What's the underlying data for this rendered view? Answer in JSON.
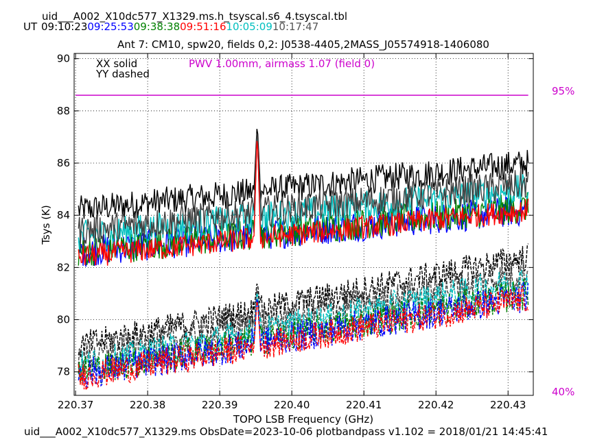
{
  "header": {
    "filename": "uid___A002_X10dc577_X1329.ms.h_tsyscal.s6_4.tsyscal.tbl",
    "ut_label": "UT",
    "times": [
      {
        "text": "09:10:23",
        "color": "#000000"
      },
      {
        "text": "09:25:53",
        "color": "#0000ff"
      },
      {
        "text": "09:38:38",
        "color": "#008000"
      },
      {
        "text": "09:51:16",
        "color": "#ff0000"
      },
      {
        "text": "10:05:09",
        "color": "#00bfbf"
      },
      {
        "text": "10:17:47",
        "color": "#555555"
      }
    ]
  },
  "footer": "uid___A002_X10dc577_X1329.ms  ObsDate=2023-10-06   plotbandpass v1.102 = 2018/01/21 14:45:41",
  "chart_data": {
    "type": "line",
    "title": "Ant 7: CM10,  spw20,  fields 0,2: J0538-4405,2MASS_J05574918-1406080",
    "xlabel": "TOPO LSB Frequency (GHz)",
    "ylabel": "Tsys (K)",
    "xlim": [
      220.3698,
      220.4335
    ],
    "ylim": [
      77.1,
      90.2
    ],
    "xticks": [
      "220.37",
      "220.38",
      "220.39",
      "220.40",
      "220.41",
      "220.42",
      "220.43"
    ],
    "xtick_values": [
      220.37,
      220.38,
      220.39,
      220.4,
      220.41,
      220.42,
      220.43
    ],
    "yticks": [
      "78",
      "80",
      "82",
      "84",
      "86",
      "88",
      "90"
    ],
    "ytick_values": [
      78,
      80,
      82,
      84,
      86,
      88,
      90
    ],
    "grid": "dotted",
    "legend": {
      "xx": "XX solid",
      "yy": "YY dashed"
    },
    "pwv_text": "PWV 1.00mm, airmass 1.07 (field 0)",
    "pwv_color": "#cc00cc",
    "atm_line_y": 88.6,
    "atm_line_xrange": [
      220.37,
      220.4328
    ],
    "right_labels": {
      "top": "95%",
      "bottom": "40%"
    },
    "spike_x": 220.3952,
    "series": [
      {
        "pol": "XX",
        "color": "#000000",
        "start": 84.2,
        "end": 86.0,
        "noise": 0.55,
        "spike": 87.6
      },
      {
        "pol": "XX",
        "color": "#0000ff",
        "start": 82.6,
        "end": 84.2,
        "noise": 0.6,
        "spike": 87.4
      },
      {
        "pol": "XX",
        "color": "#008000",
        "start": 82.6,
        "end": 84.3,
        "noise": 0.6,
        "spike": 87.4
      },
      {
        "pol": "XX",
        "color": "#00bfbf",
        "start": 83.2,
        "end": 85.0,
        "noise": 0.6,
        "spike": 87.4
      },
      {
        "pol": "XX",
        "color": "#404040",
        "start": 83.4,
        "end": 85.2,
        "noise": 0.6,
        "spike": 87.5
      },
      {
        "pol": "XX",
        "color": "#ff0000",
        "start": 82.4,
        "end": 84.2,
        "noise": 0.45,
        "spike": 87.3
      },
      {
        "pol": "YY",
        "color": "#000000",
        "start": 79.0,
        "end": 82.4,
        "noise": 0.55,
        "spike": 81.5
      },
      {
        "pol": "YY",
        "color": "#404040",
        "start": 78.5,
        "end": 81.8,
        "noise": 0.6,
        "spike": 81.3
      },
      {
        "pol": "YY",
        "color": "#00bfbf",
        "start": 78.2,
        "end": 81.5,
        "noise": 0.6,
        "spike": 81.2
      },
      {
        "pol": "YY",
        "color": "#008000",
        "start": 78.0,
        "end": 81.0,
        "noise": 0.6,
        "spike": 81.0
      },
      {
        "pol": "YY",
        "color": "#0000ff",
        "start": 77.9,
        "end": 80.9,
        "noise": 0.6,
        "spike": 81.0
      },
      {
        "pol": "YY",
        "color": "#ff0000",
        "start": 77.8,
        "end": 80.8,
        "noise": 0.55,
        "spike": 80.9
      }
    ]
  }
}
